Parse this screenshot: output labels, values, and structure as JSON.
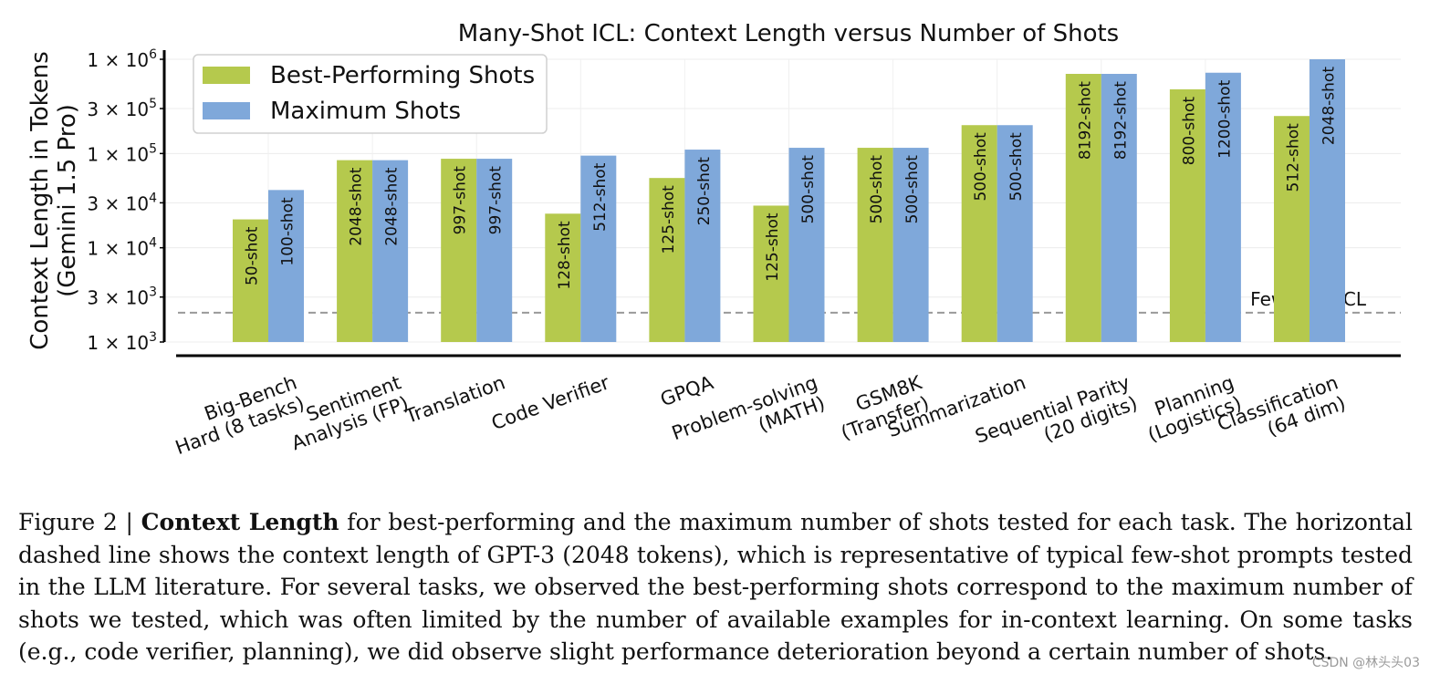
{
  "chart_data": {
    "type": "bar",
    "title": "Many-Shot ICL: Context Length versus Number of Shots",
    "ylabel": "Context Length in Tokens\n(Gemini 1.5 Pro)",
    "xlabel": "",
    "yscale": "log",
    "ylim": [
      1000,
      1000000
    ],
    "yticks": [
      {
        "value": 1000,
        "base": "1 × 10",
        "exp": "3"
      },
      {
        "value": 3000,
        "base": "3 × 10",
        "exp": "3"
      },
      {
        "value": 10000,
        "base": "1 × 10",
        "exp": "4"
      },
      {
        "value": 30000,
        "base": "3 × 10",
        "exp": "4"
      },
      {
        "value": 100000,
        "base": "1 × 10",
        "exp": "5"
      },
      {
        "value": 300000,
        "base": "3 × 10",
        "exp": "5"
      },
      {
        "value": 1000000,
        "base": "1 × 10",
        "exp": "6"
      }
    ],
    "grid": true,
    "legend_position": "top-left",
    "categories": [
      "Big-Bench\nHard (8 tasks)",
      "Sentiment\nAnalysis (FP)",
      "Translation",
      "Code Verifier",
      "GPQA",
      "Problem-solving\n(MATH)",
      "GSM8K\n(Transfer)",
      "Summarization",
      "Sequential Parity\n(20 digits)",
      "Planning\n(Logistics)",
      "Classification\n(64 dim)"
    ],
    "series": [
      {
        "name": "Best-Performing Shots",
        "color": "#b5c94d",
        "values": [
          20000,
          85000,
          88000,
          23000,
          55000,
          28000,
          115000,
          200000,
          700000,
          480000,
          250000
        ],
        "labels": [
          "50-shot",
          "2048-shot",
          "997-shot",
          "128-shot",
          "125-shot",
          "125-shot",
          "500-shot",
          "500-shot",
          "8192-shot",
          "800-shot",
          "512-shot"
        ]
      },
      {
        "name": "Maximum Shots",
        "color": "#7fa8da",
        "values": [
          41000,
          85000,
          88000,
          95000,
          110000,
          115000,
          115000,
          200000,
          700000,
          720000,
          1000000
        ],
        "labels": [
          "100-shot",
          "2048-shot",
          "997-shot",
          "512-shot",
          "250-shot",
          "500-shot",
          "500-shot",
          "500-shot",
          "8192-shot",
          "1200-shot",
          "2048-shot"
        ]
      }
    ],
    "reference_line": {
      "value": 2048,
      "label": "Few-shot ICL",
      "color": "#999999",
      "style": "dashed"
    }
  },
  "caption": {
    "prefix": "Figure 2 | ",
    "bold": "Context Length",
    "text": " for best-performing and the maximum number of shots tested for each task. The horizontal dashed line shows the context length of GPT-3 (2048 tokens), which is representative of typical few-shot prompts tested in the LLM literature. For several tasks, we observed the best-performing shots correspond to the maximum number of shots we tested, which was often limited by the number of available examples for in-context learning. On some tasks (e.g., code verifier, planning), we did observe slight performance deterioration beyond a certain number of shots."
  },
  "watermark": "CSDN @林头头03"
}
